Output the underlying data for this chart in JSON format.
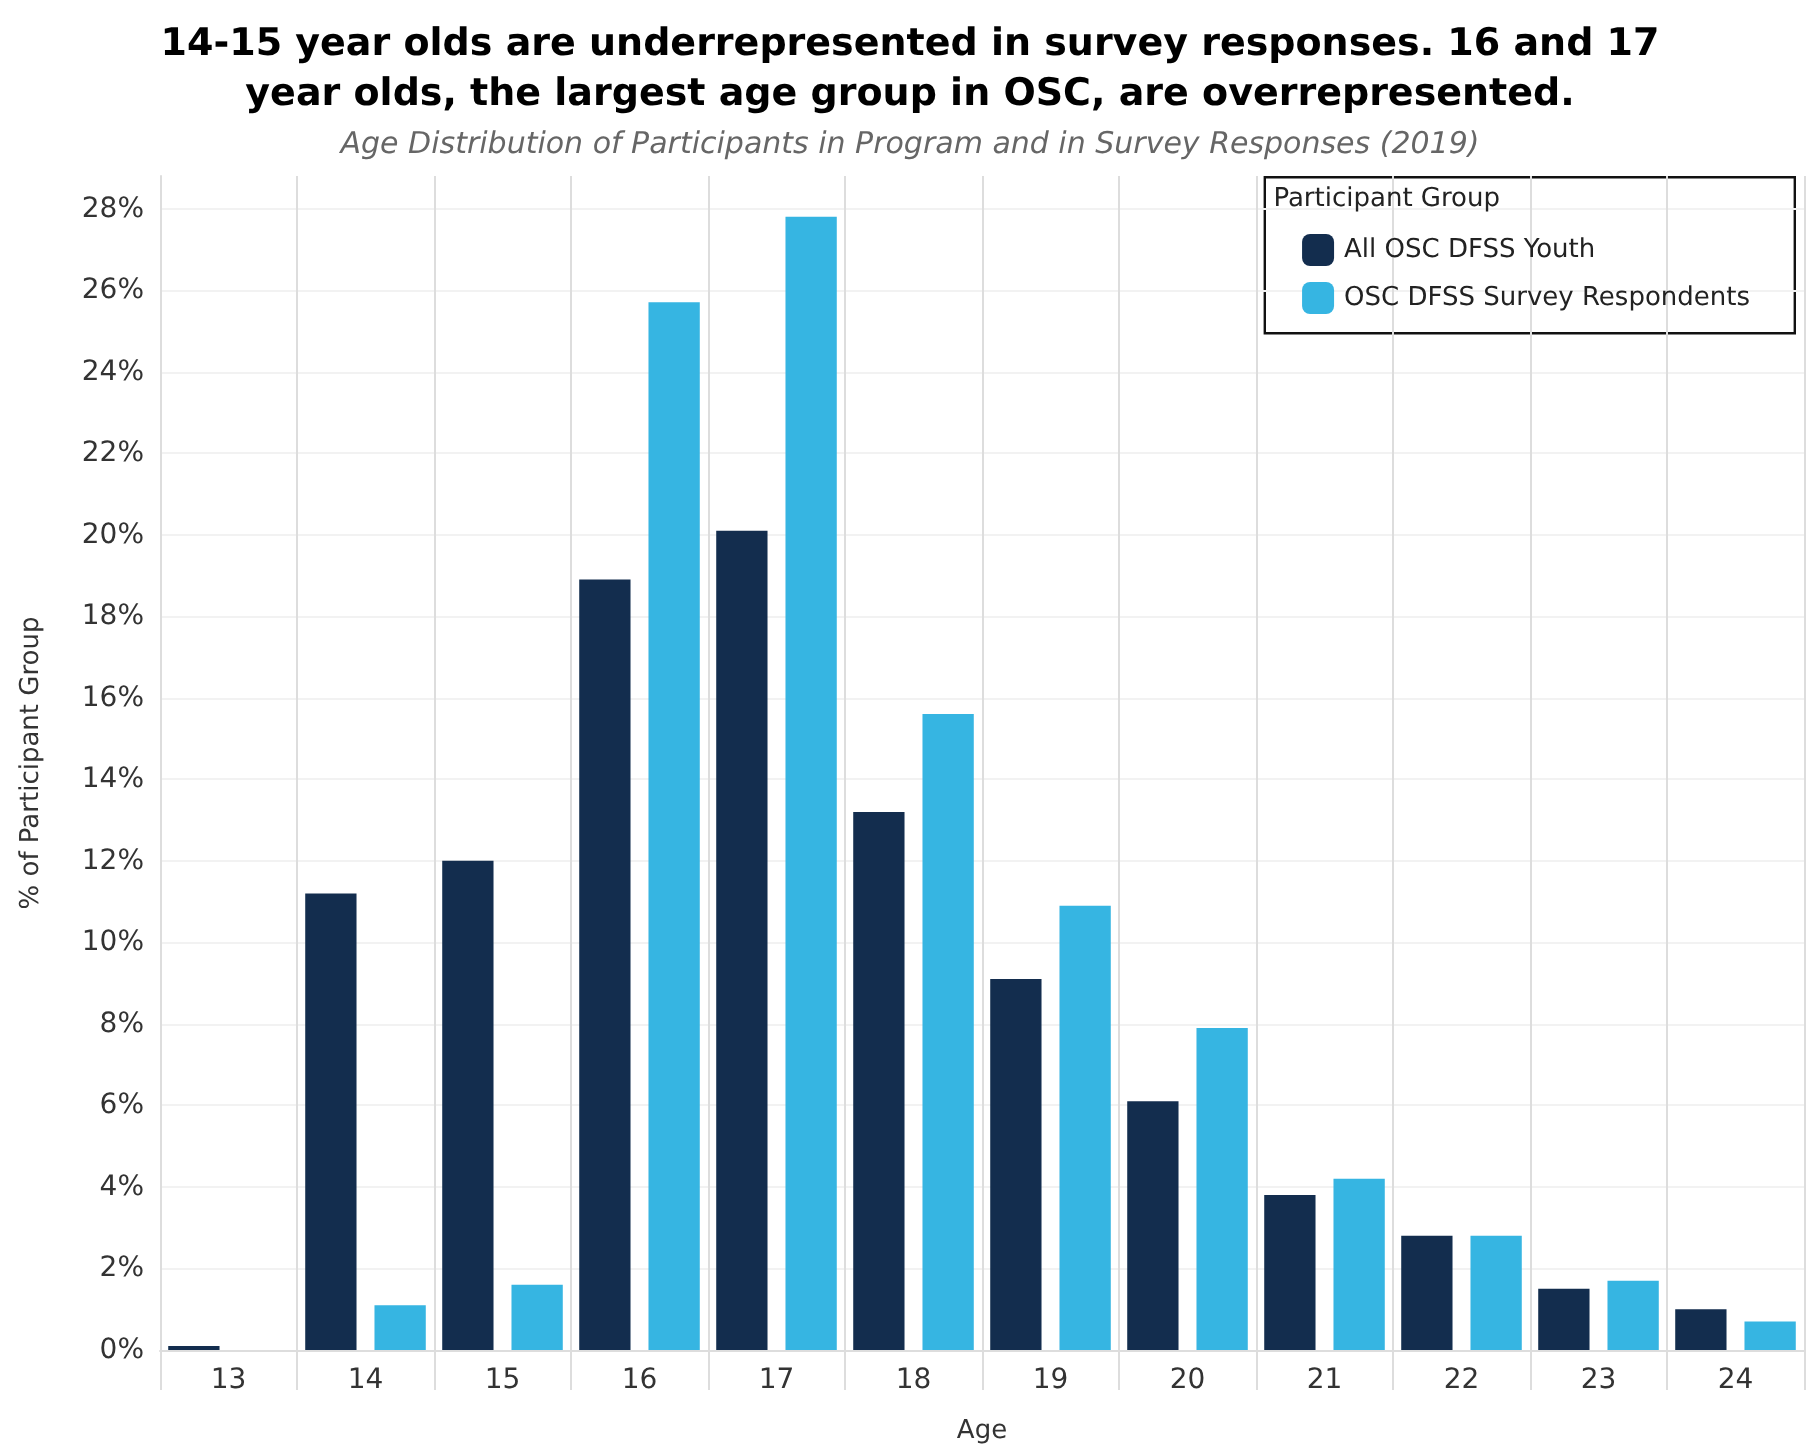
{
  "chart_data": {
    "type": "bar",
    "title": "14-15 year olds are underrepresented in survey responses. 16 and 17\nyear olds, the largest age group in OSC, are overrepresented.",
    "subtitle": "Age Distribution of Participants in Program and in Survey Responses (2019)",
    "xlabel": "Age",
    "ylabel": "% of Participant Group",
    "legend_title": "Participant Group",
    "categories": [
      "13",
      "14",
      "15",
      "16",
      "17",
      "18",
      "19",
      "20",
      "21",
      "22",
      "23",
      "24"
    ],
    "series": [
      {
        "name": "All OSC DFSS Youth",
        "color": "#132d4e",
        "values": [
          0.1,
          11.2,
          12.0,
          18.9,
          20.1,
          13.2,
          9.1,
          6.1,
          3.8,
          2.8,
          1.5,
          1.0
        ]
      },
      {
        "name": "OSC DFSS Survey Respondents",
        "color": "#36b5e2",
        "values": [
          null,
          1.1,
          1.6,
          25.7,
          27.8,
          15.6,
          10.9,
          7.9,
          4.2,
          2.8,
          1.7,
          0.7
        ]
      }
    ],
    "ylim": [
      0,
      28.8
    ],
    "yticks": [
      {
        "value": 0,
        "label": "0%"
      },
      {
        "value": 2,
        "label": "2%"
      },
      {
        "value": 4,
        "label": "4%"
      },
      {
        "value": 6,
        "label": "6%"
      },
      {
        "value": 8,
        "label": "8%"
      },
      {
        "value": 10,
        "label": "10%"
      },
      {
        "value": 12,
        "label": "12%"
      },
      {
        "value": 14,
        "label": "14%"
      },
      {
        "value": 16,
        "label": "16%"
      },
      {
        "value": 18,
        "label": "18%"
      },
      {
        "value": 20,
        "label": "20%"
      },
      {
        "value": 22,
        "label": "22%"
      },
      {
        "value": 24,
        "label": "24%"
      },
      {
        "value": 26,
        "label": "26%"
      },
      {
        "value": 28,
        "label": "28%"
      }
    ],
    "grid": true,
    "legend": "top right"
  }
}
